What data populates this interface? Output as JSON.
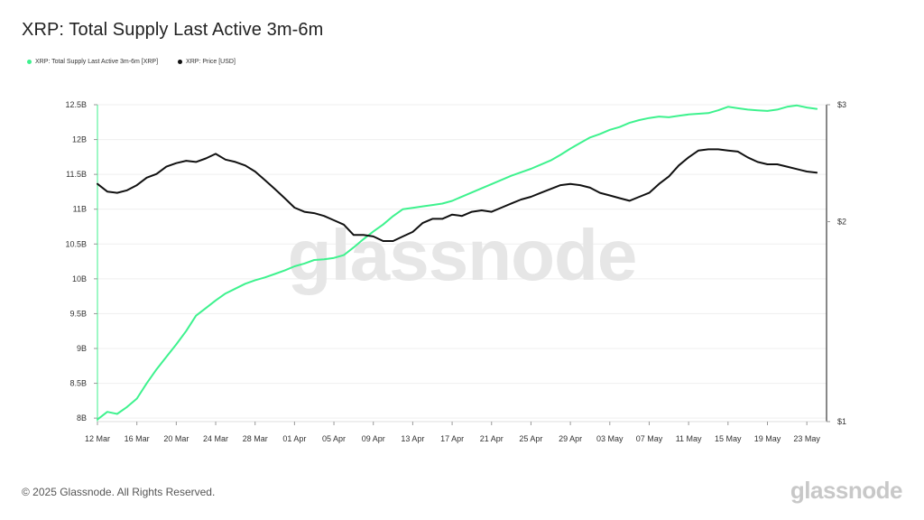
{
  "title": "XRP: Total Supply Last Active 3m-6m",
  "legend": [
    {
      "label": "XRP: Total Supply Last Active 3m-6m [XRP]",
      "color": "#3ef28e"
    },
    {
      "label": "XRP: Price [USD]",
      "color": "#111111"
    }
  ],
  "watermark": "glassnode",
  "footer": "© 2025 Glassnode. All Rights Reserved.",
  "logo": "glassnode",
  "chart_data": {
    "type": "line",
    "x_tick_labels": [
      "12 Mar",
      "16 Mar",
      "20 Mar",
      "24 Mar",
      "28 Mar",
      "01 Apr",
      "05 Apr",
      "09 Apr",
      "13 Apr",
      "17 Apr",
      "21 Apr",
      "25 Apr",
      "29 Apr",
      "03 May",
      "07 May",
      "11 May",
      "15 May",
      "19 May",
      "23 May"
    ],
    "x_range": [
      "2025-03-12",
      "2025-05-25"
    ],
    "y_left": {
      "ticks": [
        8,
        8.5,
        9,
        9.5,
        10,
        10.5,
        11,
        11.5,
        12,
        12.5
      ],
      "tick_labels": [
        "8B",
        "8.5B",
        "9B",
        "9.5B",
        "10B",
        "10.5B",
        "11B",
        "11.5B",
        "12B",
        "12.5B"
      ],
      "range": [
        7.95,
        12.5
      ],
      "unit": "B XRP"
    },
    "y_right": {
      "scale": "log",
      "ticks": [
        1,
        2,
        3
      ],
      "tick_labels": [
        "$1",
        "$2",
        "$3"
      ],
      "range": [
        1,
        3
      ]
    },
    "grid": true,
    "series": [
      {
        "name": "XRP: Total Supply Last Active 3m-6m [XRP]",
        "color": "#3ef28e",
        "axis": "left",
        "x": [
          "2025-03-12",
          "2025-03-13",
          "2025-03-14",
          "2025-03-15",
          "2025-03-16",
          "2025-03-17",
          "2025-03-18",
          "2025-03-19",
          "2025-03-20",
          "2025-03-21",
          "2025-03-22",
          "2025-03-23",
          "2025-03-24",
          "2025-03-25",
          "2025-03-26",
          "2025-03-27",
          "2025-03-28",
          "2025-03-29",
          "2025-03-30",
          "2025-03-31",
          "2025-04-01",
          "2025-04-02",
          "2025-04-03",
          "2025-04-04",
          "2025-04-05",
          "2025-04-06",
          "2025-04-07",
          "2025-04-08",
          "2025-04-09",
          "2025-04-10",
          "2025-04-11",
          "2025-04-12",
          "2025-04-13",
          "2025-04-14",
          "2025-04-15",
          "2025-04-16",
          "2025-04-17",
          "2025-04-18",
          "2025-04-19",
          "2025-04-20",
          "2025-04-21",
          "2025-04-22",
          "2025-04-23",
          "2025-04-24",
          "2025-04-25",
          "2025-04-26",
          "2025-04-27",
          "2025-04-28",
          "2025-04-29",
          "2025-04-30",
          "2025-05-01",
          "2025-05-02",
          "2025-05-03",
          "2025-05-04",
          "2025-05-05",
          "2025-05-06",
          "2025-05-07",
          "2025-05-08",
          "2025-05-09",
          "2025-05-10",
          "2025-05-11",
          "2025-05-12",
          "2025-05-13",
          "2025-05-14",
          "2025-05-15",
          "2025-05-16",
          "2025-05-17",
          "2025-05-18",
          "2025-05-19",
          "2025-05-20",
          "2025-05-21",
          "2025-05-22",
          "2025-05-23",
          "2025-05-24"
        ],
        "values": [
          7.98,
          8.09,
          8.06,
          8.16,
          8.28,
          8.5,
          8.7,
          8.88,
          9.06,
          9.25,
          9.47,
          9.58,
          9.69,
          9.79,
          9.86,
          9.93,
          9.98,
          10.02,
          10.07,
          10.12,
          10.18,
          10.22,
          10.27,
          10.28,
          10.3,
          10.34,
          10.45,
          10.57,
          10.68,
          10.78,
          10.9,
          11.0,
          11.02,
          11.04,
          11.06,
          11.08,
          11.12,
          11.18,
          11.24,
          11.3,
          11.36,
          11.42,
          11.48,
          11.53,
          11.58,
          11.64,
          11.7,
          11.78,
          11.87,
          11.95,
          12.03,
          12.08,
          12.14,
          12.18,
          12.24,
          12.28,
          12.31,
          12.33,
          12.32,
          12.34,
          12.36,
          12.37,
          12.38,
          12.42,
          12.47,
          12.45,
          12.43,
          12.42,
          12.41,
          12.43,
          12.47,
          12.49,
          12.46,
          12.44
        ]
      },
      {
        "name": "XRP: Price [USD]",
        "color": "#111111",
        "axis": "right",
        "x": [
          "2025-03-12",
          "2025-03-13",
          "2025-03-14",
          "2025-03-15",
          "2025-03-16",
          "2025-03-17",
          "2025-03-18",
          "2025-03-19",
          "2025-03-20",
          "2025-03-21",
          "2025-03-22",
          "2025-03-23",
          "2025-03-24",
          "2025-03-25",
          "2025-03-26",
          "2025-03-27",
          "2025-03-28",
          "2025-03-29",
          "2025-03-30",
          "2025-03-31",
          "2025-04-01",
          "2025-04-02",
          "2025-04-03",
          "2025-04-04",
          "2025-04-05",
          "2025-04-06",
          "2025-04-07",
          "2025-04-08",
          "2025-04-09",
          "2025-04-10",
          "2025-04-11",
          "2025-04-12",
          "2025-04-13",
          "2025-04-14",
          "2025-04-15",
          "2025-04-16",
          "2025-04-17",
          "2025-04-18",
          "2025-04-19",
          "2025-04-20",
          "2025-04-21",
          "2025-04-22",
          "2025-04-23",
          "2025-04-24",
          "2025-04-25",
          "2025-04-26",
          "2025-04-27",
          "2025-04-28",
          "2025-04-29",
          "2025-04-30",
          "2025-05-01",
          "2025-05-02",
          "2025-05-03",
          "2025-05-04",
          "2025-05-05",
          "2025-05-06",
          "2025-05-07",
          "2025-05-08",
          "2025-05-09",
          "2025-05-10",
          "2025-05-11",
          "2025-05-12",
          "2025-05-13",
          "2025-05-14",
          "2025-05-15",
          "2025-05-16",
          "2025-05-17",
          "2025-05-18",
          "2025-05-19",
          "2025-05-20",
          "2025-05-21",
          "2025-05-22",
          "2025-05-23",
          "2025-05-24"
        ],
        "values": [
          2.28,
          2.22,
          2.21,
          2.23,
          2.27,
          2.33,
          2.36,
          2.42,
          2.45,
          2.47,
          2.46,
          2.49,
          2.53,
          2.48,
          2.46,
          2.43,
          2.38,
          2.31,
          2.24,
          2.17,
          2.1,
          2.07,
          2.06,
          2.04,
          2.01,
          1.98,
          1.91,
          1.91,
          1.9,
          1.87,
          1.87,
          1.9,
          1.93,
          1.99,
          2.02,
          2.02,
          2.05,
          2.04,
          2.07,
          2.08,
          2.07,
          2.1,
          2.13,
          2.16,
          2.18,
          2.21,
          2.24,
          2.27,
          2.28,
          2.27,
          2.25,
          2.21,
          2.19,
          2.17,
          2.15,
          2.18,
          2.21,
          2.28,
          2.34,
          2.43,
          2.5,
          2.56,
          2.57,
          2.57,
          2.56,
          2.55,
          2.5,
          2.46,
          2.44,
          2.44,
          2.42,
          2.4,
          2.38,
          2.37
        ]
      }
    ]
  }
}
